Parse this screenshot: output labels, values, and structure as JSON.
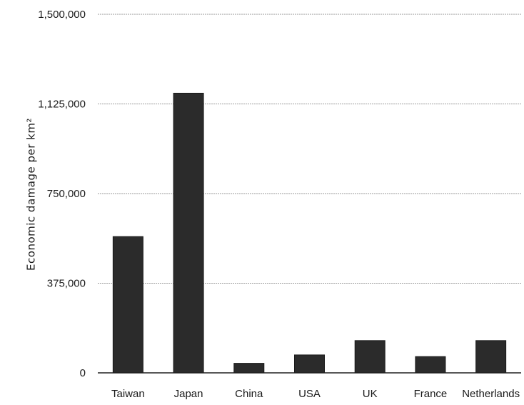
{
  "chart_data": {
    "type": "bar",
    "title": "",
    "xlabel": "",
    "ylabel": "Economic damage per km²",
    "categories": [
      "Taiwan",
      "Japan",
      "China",
      "USA",
      "UK",
      "France",
      "Netherlands"
    ],
    "values": [
      570000,
      1170000,
      40000,
      75000,
      135000,
      68000,
      135000
    ],
    "ylim": [
      0,
      1500000
    ],
    "yticks": [
      0,
      375000,
      750000,
      1125000,
      1500000
    ],
    "ytick_labels": [
      "0",
      "375,000",
      "750,000",
      "1,125,000",
      "1,500,000"
    ],
    "grid": true,
    "legend": "none",
    "bar_color": "#2b2b2b"
  }
}
